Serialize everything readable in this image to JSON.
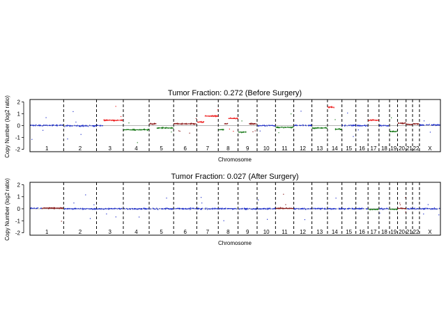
{
  "chart_data": [
    {
      "type": "scatter",
      "title": "Tumor Fraction: 0.272 (Before Surgery)",
      "xlabel": "Chromosome",
      "ylabel": "Copy Number (log2 ratio)",
      "ylim": [
        -2.2,
        2.2
      ],
      "yticks": [
        -2,
        -1,
        0,
        1,
        2
      ],
      "categories": [
        "1",
        "2",
        "3",
        "4",
        "5",
        "6",
        "7",
        "8",
        "9",
        "10",
        "11",
        "12",
        "13",
        "14",
        "15",
        "16",
        "17",
        "18",
        "19",
        "20",
        "21",
        "22",
        "X"
      ],
      "reference_line": 0,
      "legend": "none",
      "colors": {
        "neutral": "#2233cc",
        "gain": "#ee2222",
        "amplification": "#8b1a1a",
        "loss": "#1a7a1a"
      },
      "segments": [
        {
          "chrom": "1",
          "part": [
            0.0,
            1.0
          ],
          "value": 0.02,
          "state": "neutral"
        },
        {
          "chrom": "2",
          "part": [
            0.0,
            1.0
          ],
          "value": -0.02,
          "state": "neutral"
        },
        {
          "chrom": "3",
          "part": [
            0.0,
            0.25
          ],
          "value": 0.0,
          "state": "neutral"
        },
        {
          "chrom": "3",
          "part": [
            0.25,
            1.0
          ],
          "value": 0.45,
          "state": "gain"
        },
        {
          "chrom": "4",
          "part": [
            0.0,
            1.0
          ],
          "value": -0.35,
          "state": "loss"
        },
        {
          "chrom": "5",
          "part": [
            0.0,
            0.3
          ],
          "value": 0.15,
          "state": "amplification"
        },
        {
          "chrom": "5",
          "part": [
            0.3,
            1.0
          ],
          "value": -0.2,
          "state": "loss"
        },
        {
          "chrom": "6",
          "part": [
            0.0,
            1.0
          ],
          "value": 0.15,
          "state": "amplification"
        },
        {
          "chrom": "7",
          "part": [
            0.0,
            0.35
          ],
          "value": 0.3,
          "state": "gain"
        },
        {
          "chrom": "7",
          "part": [
            0.35,
            1.0
          ],
          "value": 0.8,
          "state": "gain"
        },
        {
          "chrom": "8",
          "part": [
            0.0,
            0.3
          ],
          "value": -0.35,
          "state": "loss"
        },
        {
          "chrom": "8",
          "part": [
            0.3,
            0.5
          ],
          "value": 0.15,
          "state": "amplification"
        },
        {
          "chrom": "8",
          "part": [
            0.5,
            1.0
          ],
          "value": 0.6,
          "state": "gain"
        },
        {
          "chrom": "9",
          "part": [
            0.0,
            0.45
          ],
          "value": -0.55,
          "state": "loss"
        },
        {
          "chrom": "9",
          "part": [
            0.55,
            1.0
          ],
          "value": 0.15,
          "state": "amplification"
        },
        {
          "chrom": "10",
          "part": [
            0.0,
            1.0
          ],
          "value": 0.0,
          "state": "neutral"
        },
        {
          "chrom": "11",
          "part": [
            0.0,
            1.0
          ],
          "value": -0.15,
          "state": "loss"
        },
        {
          "chrom": "12",
          "part": [
            0.0,
            1.0
          ],
          "value": 0.02,
          "state": "neutral"
        },
        {
          "chrom": "13",
          "part": [
            0.0,
            1.0
          ],
          "value": -0.2,
          "state": "loss"
        },
        {
          "chrom": "14",
          "part": [
            0.0,
            0.5
          ],
          "value": 1.55,
          "state": "gain"
        },
        {
          "chrom": "14",
          "part": [
            0.5,
            1.0
          ],
          "value": -0.3,
          "state": "loss"
        },
        {
          "chrom": "15",
          "part": [
            0.0,
            1.0
          ],
          "value": 0.02,
          "state": "neutral"
        },
        {
          "chrom": "16",
          "part": [
            0.0,
            1.0
          ],
          "value": 0.0,
          "state": "neutral"
        },
        {
          "chrom": "17",
          "part": [
            0.0,
            1.0
          ],
          "value": 0.45,
          "state": "gain"
        },
        {
          "chrom": "18",
          "part": [
            0.0,
            1.0
          ],
          "value": 0.0,
          "state": "neutral"
        },
        {
          "chrom": "19",
          "part": [
            0.0,
            1.0
          ],
          "value": -0.5,
          "state": "loss"
        },
        {
          "chrom": "20",
          "part": [
            0.0,
            1.0
          ],
          "value": 0.2,
          "state": "amplification"
        },
        {
          "chrom": "21",
          "part": [
            0.0,
            1.0
          ],
          "value": 0.1,
          "state": "amplification"
        },
        {
          "chrom": "22",
          "part": [
            0.0,
            1.0
          ],
          "value": 0.15,
          "state": "amplification"
        },
        {
          "chrom": "X",
          "part": [
            0.0,
            1.0
          ],
          "value": 0.05,
          "state": "neutral"
        }
      ]
    },
    {
      "type": "scatter",
      "title": "Tumor Fraction: 0.027 (After Surgery)",
      "xlabel": "Chromosome",
      "ylabel": "Copy Number (log2 ratio)",
      "ylim": [
        -2.2,
        2.2
      ],
      "yticks": [
        -2,
        -1,
        0,
        1,
        2
      ],
      "categories": [
        "1",
        "2",
        "3",
        "4",
        "5",
        "6",
        "7",
        "8",
        "9",
        "10",
        "11",
        "12",
        "13",
        "14",
        "15",
        "16",
        "17",
        "18",
        "19",
        "20",
        "21",
        "22",
        "X"
      ],
      "reference_line": 0,
      "legend": "none",
      "colors": {
        "neutral": "#2233cc",
        "gain": "#ee2222",
        "amplification": "#8b1a1a",
        "loss": "#1a7a1a"
      },
      "segments": [
        {
          "chrom": "1",
          "part": [
            0.0,
            0.35
          ],
          "value": 0.05,
          "state": "neutral"
        },
        {
          "chrom": "1",
          "part": [
            0.35,
            1.0
          ],
          "value": 0.05,
          "state": "amplification"
        },
        {
          "chrom": "2",
          "part": [
            0.0,
            1.0
          ],
          "value": 0.0,
          "state": "neutral"
        },
        {
          "chrom": "3",
          "part": [
            0.0,
            1.0
          ],
          "value": 0.0,
          "state": "neutral"
        },
        {
          "chrom": "4",
          "part": [
            0.0,
            1.0
          ],
          "value": 0.0,
          "state": "neutral"
        },
        {
          "chrom": "5",
          "part": [
            0.0,
            1.0
          ],
          "value": 0.0,
          "state": "neutral"
        },
        {
          "chrom": "6",
          "part": [
            0.0,
            1.0
          ],
          "value": 0.0,
          "state": "neutral"
        },
        {
          "chrom": "7",
          "part": [
            0.0,
            1.0
          ],
          "value": 0.0,
          "state": "neutral"
        },
        {
          "chrom": "8",
          "part": [
            0.0,
            1.0
          ],
          "value": 0.0,
          "state": "neutral"
        },
        {
          "chrom": "9",
          "part": [
            0.0,
            1.0
          ],
          "value": 0.0,
          "state": "neutral"
        },
        {
          "chrom": "10",
          "part": [
            0.0,
            1.0
          ],
          "value": 0.0,
          "state": "neutral"
        },
        {
          "chrom": "11",
          "part": [
            0.0,
            1.0
          ],
          "value": 0.03,
          "state": "amplification"
        },
        {
          "chrom": "12",
          "part": [
            0.0,
            1.0
          ],
          "value": 0.0,
          "state": "neutral"
        },
        {
          "chrom": "13",
          "part": [
            0.0,
            1.0
          ],
          "value": 0.0,
          "state": "neutral"
        },
        {
          "chrom": "14",
          "part": [
            0.0,
            1.0
          ],
          "value": 0.0,
          "state": "neutral"
        },
        {
          "chrom": "15",
          "part": [
            0.0,
            1.0
          ],
          "value": 0.0,
          "state": "neutral"
        },
        {
          "chrom": "16",
          "part": [
            0.0,
            1.0
          ],
          "value": 0.0,
          "state": "neutral"
        },
        {
          "chrom": "17",
          "part": [
            0.0,
            1.0
          ],
          "value": -0.05,
          "state": "loss"
        },
        {
          "chrom": "18",
          "part": [
            0.0,
            1.0
          ],
          "value": 0.0,
          "state": "neutral"
        },
        {
          "chrom": "19",
          "part": [
            0.0,
            1.0
          ],
          "value": -0.05,
          "state": "loss"
        },
        {
          "chrom": "20",
          "part": [
            0.0,
            1.0
          ],
          "value": 0.03,
          "state": "amplification"
        },
        {
          "chrom": "21",
          "part": [
            0.0,
            1.0
          ],
          "value": 0.0,
          "state": "neutral"
        },
        {
          "chrom": "22",
          "part": [
            0.0,
            1.0
          ],
          "value": 0.0,
          "state": "neutral"
        },
        {
          "chrom": "X",
          "part": [
            0.0,
            1.0
          ],
          "value": 0.0,
          "state": "neutral"
        }
      ]
    }
  ]
}
